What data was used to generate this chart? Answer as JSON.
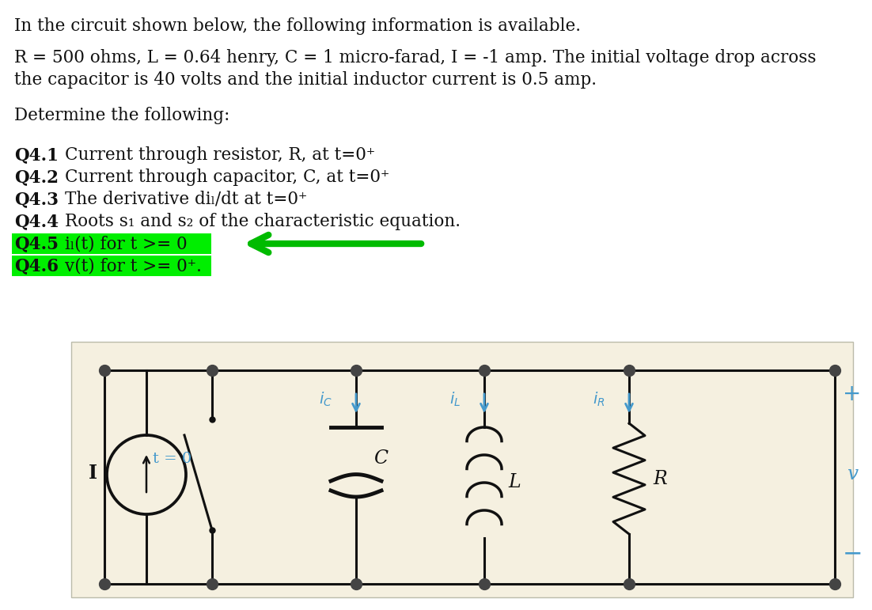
{
  "bg_color": "#ffffff",
  "circuit_bg": "#f5f0e0",
  "title_line": "In the circuit shown below, the following information is available.",
  "param_line1": "R = 500 ohms, L = 0.64 henry, C = 1 micro-farad, I = -1 amp. The initial voltage drop across",
  "param_line2": "the capacitor is 40 volts and the initial inductor current is 0.5 amp.",
  "determine_line": "Determine the following:",
  "questions": [
    {
      "label": "Q4.1",
      "text": "Current through resistor, R, at t=0⁺",
      "highlight": false
    },
    {
      "label": "Q4.2",
      "text": "Current through capacitor, C, at t=0⁺",
      "highlight": false
    },
    {
      "label": "Q4.3",
      "text": "The derivative diₗ/dt at t=0⁺",
      "highlight": false
    },
    {
      "label": "Q4.4",
      "text": "Roots s₁ and s₂ of the characteristic equation.",
      "highlight": false
    },
    {
      "label": "Q4.5",
      "text": "iₗ(t) for t >= 0",
      "highlight": true
    },
    {
      "label": "Q4.6",
      "text": "v(t) for t >= 0⁺.",
      "highlight": true
    }
  ],
  "highlight_color": "#00ee00",
  "arrow_color": "#00bb00",
  "wire_color": "#111111",
  "label_color": "#4499cc",
  "node_color": "#444444",
  "text_color": "#111111"
}
